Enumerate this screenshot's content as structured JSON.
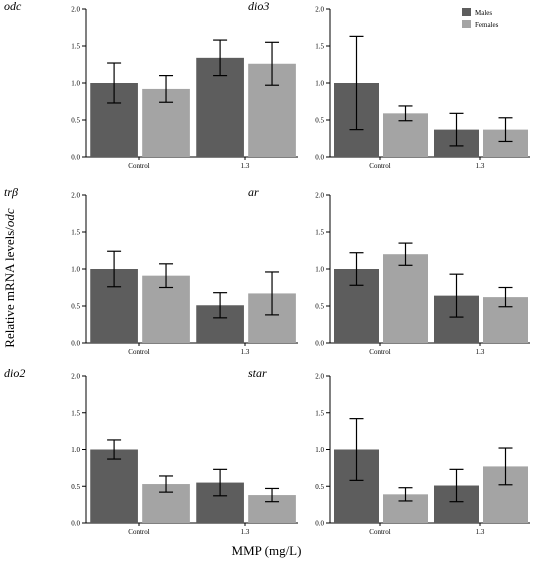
{
  "figure": {
    "ylabel_prefix": "Relative mRNA levels/",
    "ylabel_gene": "odc",
    "xlabel": "MMP (mg/L)"
  },
  "colors": {
    "males": "#5d5d5d",
    "females": "#a4a4a4",
    "axis": "#000000"
  },
  "chart_data": [
    {
      "type": "bar",
      "gene": "odc",
      "categories": [
        "Control",
        "1.3"
      ],
      "series": [
        {
          "name": "Males",
          "values": [
            1.0,
            1.34
          ],
          "errors": [
            0.27,
            0.24
          ]
        },
        {
          "name": "Females",
          "values": [
            0.92,
            1.26
          ],
          "errors": [
            0.18,
            0.29
          ]
        }
      ],
      "ylim": [
        0,
        2.0
      ],
      "yticks": [
        "0.0",
        "0.5",
        "1.0",
        "1.5",
        "2.0"
      ],
      "legend": false
    },
    {
      "type": "bar",
      "gene": "dio3",
      "categories": [
        "Control",
        "1.3"
      ],
      "series": [
        {
          "name": "Males",
          "values": [
            1.0,
            0.37
          ],
          "errors": [
            0.63,
            0.22
          ]
        },
        {
          "name": "Females",
          "values": [
            0.59,
            0.37
          ],
          "errors": [
            0.1,
            0.16
          ]
        }
      ],
      "ylim": [
        0,
        2.0
      ],
      "yticks": [
        "0.0",
        "0.5",
        "1.0",
        "1.5",
        "2.0"
      ],
      "legend": true,
      "legend_position": "top-right"
    },
    {
      "type": "bar",
      "gene": "trβ",
      "categories": [
        "Control",
        "1.3"
      ],
      "series": [
        {
          "name": "Males",
          "values": [
            1.0,
            0.51
          ],
          "errors": [
            0.24,
            0.17
          ]
        },
        {
          "name": "Females",
          "values": [
            0.91,
            0.67
          ],
          "errors": [
            0.16,
            0.29
          ]
        }
      ],
      "ylim": [
        0,
        2.0
      ],
      "yticks": [
        "0.0",
        "0.5",
        "1.0",
        "1.5",
        "2.0"
      ],
      "legend": false
    },
    {
      "type": "bar",
      "gene": "ar",
      "categories": [
        "Control",
        "1.3"
      ],
      "series": [
        {
          "name": "Males",
          "values": [
            1.0,
            0.64
          ],
          "errors": [
            0.22,
            0.29
          ]
        },
        {
          "name": "Females",
          "values": [
            1.2,
            0.62
          ],
          "errors": [
            0.15,
            0.13
          ]
        }
      ],
      "ylim": [
        0,
        2.0
      ],
      "yticks": [
        "0.0",
        "0.5",
        "1.0",
        "1.5",
        "2.0"
      ],
      "legend": false
    },
    {
      "type": "bar",
      "gene": "dio2",
      "categories": [
        "Control",
        "1.3"
      ],
      "series": [
        {
          "name": "Males",
          "values": [
            1.0,
            0.55
          ],
          "errors": [
            0.13,
            0.18
          ]
        },
        {
          "name": "Females",
          "values": [
            0.53,
            0.38
          ],
          "errors": [
            0.11,
            0.09
          ]
        }
      ],
      "ylim": [
        0,
        2.0
      ],
      "yticks": [
        "0.0",
        "0.5",
        "1.0",
        "1.5",
        "2.0"
      ],
      "legend": false
    },
    {
      "type": "bar",
      "gene": "star",
      "categories": [
        "Control",
        "1.3"
      ],
      "series": [
        {
          "name": "Males",
          "values": [
            1.0,
            0.51
          ],
          "errors": [
            0.42,
            0.22
          ]
        },
        {
          "name": "Females",
          "values": [
            0.39,
            0.77
          ],
          "errors": [
            0.09,
            0.25
          ]
        }
      ],
      "ylim": [
        0,
        2.0
      ],
      "yticks": [
        "0.0",
        "0.5",
        "1.0",
        "1.5",
        "2.0"
      ],
      "legend": false
    }
  ]
}
